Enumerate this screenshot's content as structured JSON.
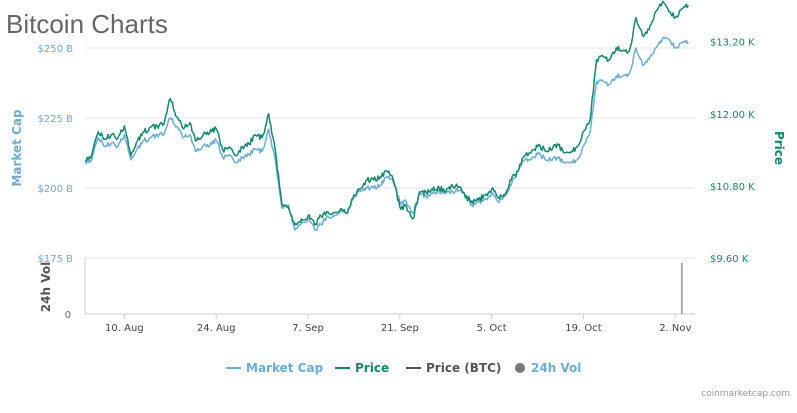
{
  "colors": {
    "market_cap": "#6aadd5",
    "price": "#108a6c",
    "price_btc": "#555555",
    "volume": "#777777",
    "grid": "#e6e6e6",
    "title": "#666666"
  },
  "chart_data": {
    "type": "line",
    "title": "Bitcoin Charts",
    "credit": "coinmarketcap.com",
    "x_ticks": [
      "10. Aug",
      "24. Aug",
      "7. Sep",
      "21. Sep",
      "5. Oct",
      "19. Oct",
      "2. Nov"
    ],
    "x_range": [
      "2020-08-04",
      "2020-11-05"
    ],
    "y_left": {
      "label": "Market Cap",
      "ticks": [
        "$175 B",
        "$200 B",
        "$225 B",
        "$250 B"
      ],
      "range": [
        175,
        260
      ]
    },
    "y_right": {
      "label": "Price",
      "ticks": [
        "$9.60 K",
        "$10.80 K",
        "$12.00 K",
        "$13.20 K"
      ],
      "range": [
        9600,
        13560
      ]
    },
    "y_volume": {
      "label": "24h Vol",
      "ticks": [
        "0"
      ]
    },
    "legend": [
      {
        "label": "Market Cap",
        "symbol": "line",
        "color_key": "market_cap"
      },
      {
        "label": "Price",
        "symbol": "line",
        "color_key": "price"
      },
      {
        "label": "Price (BTC)",
        "symbol": "line",
        "color_key": "price_btc"
      },
      {
        "label": "24h Vol",
        "symbol": "dot",
        "color_key": "volume"
      }
    ],
    "series": [
      {
        "name": "Market Cap",
        "axis": "left",
        "points": [
          [
            "2020-08-04",
            209
          ],
          [
            "2020-08-05",
            210
          ],
          [
            "2020-08-06",
            218
          ],
          [
            "2020-08-07",
            215
          ],
          [
            "2020-08-08",
            216
          ],
          [
            "2020-08-09",
            215
          ],
          [
            "2020-08-10",
            219
          ],
          [
            "2020-08-11",
            210
          ],
          [
            "2020-08-12",
            214
          ],
          [
            "2020-08-13",
            217
          ],
          [
            "2020-08-14",
            218
          ],
          [
            "2020-08-15",
            219
          ],
          [
            "2020-08-16",
            219
          ],
          [
            "2020-08-17",
            225
          ],
          [
            "2020-08-18",
            222
          ],
          [
            "2020-08-19",
            218
          ],
          [
            "2020-08-20",
            219
          ],
          [
            "2020-08-21",
            213
          ],
          [
            "2020-08-22",
            215
          ],
          [
            "2020-08-23",
            215
          ],
          [
            "2020-08-24",
            217
          ],
          [
            "2020-08-25",
            211
          ],
          [
            "2020-08-26",
            212
          ],
          [
            "2020-08-27",
            209
          ],
          [
            "2020-08-28",
            211
          ],
          [
            "2020-08-29",
            212
          ],
          [
            "2020-08-30",
            214
          ],
          [
            "2020-08-31",
            213
          ],
          [
            "2020-09-01",
            221
          ],
          [
            "2020-09-02",
            210
          ],
          [
            "2020-09-03",
            193
          ],
          [
            "2020-09-04",
            194
          ],
          [
            "2020-09-05",
            185
          ],
          [
            "2020-09-06",
            188
          ],
          [
            "2020-09-07",
            189
          ],
          [
            "2020-09-08",
            185
          ],
          [
            "2020-09-09",
            187
          ],
          [
            "2020-09-10",
            190
          ],
          [
            "2020-09-11",
            190
          ],
          [
            "2020-09-12",
            192
          ],
          [
            "2020-09-13",
            191
          ],
          [
            "2020-09-14",
            197
          ],
          [
            "2020-09-15",
            199
          ],
          [
            "2020-09-16",
            200
          ],
          [
            "2020-09-17",
            200
          ],
          [
            "2020-09-18",
            201
          ],
          [
            "2020-09-19",
            204
          ],
          [
            "2020-09-20",
            202
          ],
          [
            "2020-09-21",
            195
          ],
          [
            "2020-09-22",
            195
          ],
          [
            "2020-09-23",
            191
          ],
          [
            "2020-09-24",
            198
          ],
          [
            "2020-09-25",
            197
          ],
          [
            "2020-09-26",
            198
          ],
          [
            "2020-09-27",
            199
          ],
          [
            "2020-09-28",
            198
          ],
          [
            "2020-09-29",
            199
          ],
          [
            "2020-09-30",
            199
          ],
          [
            "2020-10-01",
            197
          ],
          [
            "2020-10-02",
            194
          ],
          [
            "2020-10-03",
            195
          ],
          [
            "2020-10-04",
            196
          ],
          [
            "2020-10-05",
            198
          ],
          [
            "2020-10-06",
            195
          ],
          [
            "2020-10-07",
            197
          ],
          [
            "2020-10-08",
            201
          ],
          [
            "2020-10-09",
            206
          ],
          [
            "2020-10-10",
            210
          ],
          [
            "2020-10-11",
            210
          ],
          [
            "2020-10-12",
            212
          ],
          [
            "2020-10-13",
            211
          ],
          [
            "2020-10-14",
            210
          ],
          [
            "2020-10-15",
            211
          ],
          [
            "2020-10-16",
            209
          ],
          [
            "2020-10-17",
            209
          ],
          [
            "2020-10-18",
            210
          ],
          [
            "2020-10-19",
            215
          ],
          [
            "2020-10-20",
            220
          ],
          [
            "2020-10-21",
            238
          ],
          [
            "2020-10-22",
            238
          ],
          [
            "2020-10-23",
            237
          ],
          [
            "2020-10-24",
            240
          ],
          [
            "2020-10-25",
            240
          ],
          [
            "2020-10-26",
            241
          ],
          [
            "2020-10-27",
            250
          ],
          [
            "2020-10-28",
            244
          ],
          [
            "2020-10-29",
            246
          ],
          [
            "2020-10-30",
            250
          ],
          [
            "2020-10-31",
            253
          ],
          [
            "2020-11-01",
            253
          ],
          [
            "2020-11-02",
            250
          ],
          [
            "2020-11-03",
            252
          ],
          [
            "2020-11-04",
            252
          ]
        ]
      },
      {
        "name": "Price",
        "axis": "right",
        "points": [
          [
            "2020-08-04",
            11220
          ],
          [
            "2020-08-05",
            11300
          ],
          [
            "2020-08-06",
            11700
          ],
          [
            "2020-08-07",
            11580
          ],
          [
            "2020-08-08",
            11650
          ],
          [
            "2020-08-09",
            11600
          ],
          [
            "2020-08-10",
            11800
          ],
          [
            "2020-08-11",
            11300
          ],
          [
            "2020-08-12",
            11550
          ],
          [
            "2020-08-13",
            11700
          ],
          [
            "2020-08-14",
            11780
          ],
          [
            "2020-08-15",
            11800
          ],
          [
            "2020-08-16",
            11820
          ],
          [
            "2020-08-17",
            12250
          ],
          [
            "2020-08-18",
            11950
          ],
          [
            "2020-08-19",
            11750
          ],
          [
            "2020-08-20",
            11850
          ],
          [
            "2020-08-21",
            11550
          ],
          [
            "2020-08-22",
            11650
          ],
          [
            "2020-08-23",
            11680
          ],
          [
            "2020-08-24",
            11750
          ],
          [
            "2020-08-25",
            11400
          ],
          [
            "2020-08-26",
            11450
          ],
          [
            "2020-08-27",
            11300
          ],
          [
            "2020-08-28",
            11450
          ],
          [
            "2020-08-29",
            11500
          ],
          [
            "2020-08-30",
            11650
          ],
          [
            "2020-08-31",
            11600
          ],
          [
            "2020-09-01",
            12000
          ],
          [
            "2020-09-02",
            11400
          ],
          [
            "2020-09-03",
            10500
          ],
          [
            "2020-09-04",
            10450
          ],
          [
            "2020-09-05",
            10150
          ],
          [
            "2020-09-06",
            10250
          ],
          [
            "2020-09-07",
            10300
          ],
          [
            "2020-09-08",
            10150
          ],
          [
            "2020-09-09",
            10300
          ],
          [
            "2020-09-10",
            10370
          ],
          [
            "2020-09-11",
            10350
          ],
          [
            "2020-09-12",
            10420
          ],
          [
            "2020-09-13",
            10350
          ],
          [
            "2020-09-14",
            10650
          ],
          [
            "2020-09-15",
            10750
          ],
          [
            "2020-09-16",
            10900
          ],
          [
            "2020-09-17",
            10900
          ],
          [
            "2020-09-18",
            10950
          ],
          [
            "2020-09-19",
            11050
          ],
          [
            "2020-09-20",
            10900
          ],
          [
            "2020-09-21",
            10450
          ],
          [
            "2020-09-22",
            10450
          ],
          [
            "2020-09-23",
            10250
          ],
          [
            "2020-09-24",
            10700
          ],
          [
            "2020-09-25",
            10700
          ],
          [
            "2020-09-26",
            10730
          ],
          [
            "2020-09-27",
            10770
          ],
          [
            "2020-09-28",
            10700
          ],
          [
            "2020-09-29",
            10820
          ],
          [
            "2020-09-30",
            10780
          ],
          [
            "2020-10-01",
            10600
          ],
          [
            "2020-10-02",
            10550
          ],
          [
            "2020-10-03",
            10570
          ],
          [
            "2020-10-04",
            10650
          ],
          [
            "2020-10-05",
            10750
          ],
          [
            "2020-10-06",
            10600
          ],
          [
            "2020-10-07",
            10650
          ],
          [
            "2020-10-08",
            10900
          ],
          [
            "2020-10-09",
            11050
          ],
          [
            "2020-10-10",
            11300
          ],
          [
            "2020-10-11",
            11350
          ],
          [
            "2020-10-12",
            11450
          ],
          [
            "2020-10-13",
            11420
          ],
          [
            "2020-10-14",
            11400
          ],
          [
            "2020-10-15",
            11500
          ],
          [
            "2020-10-16",
            11350
          ],
          [
            "2020-10-17",
            11350
          ],
          [
            "2020-10-18",
            11450
          ],
          [
            "2020-10-19",
            11700
          ],
          [
            "2020-10-20",
            11900
          ],
          [
            "2020-10-21",
            12900
          ],
          [
            "2020-10-22",
            12950
          ],
          [
            "2020-10-23",
            12900
          ],
          [
            "2020-10-24",
            13100
          ],
          [
            "2020-10-25",
            13050
          ],
          [
            "2020-10-26",
            13050
          ],
          [
            "2020-10-27",
            13600
          ],
          [
            "2020-10-28",
            13300
          ],
          [
            "2020-10-29",
            13400
          ],
          [
            "2020-10-30",
            13700
          ],
          [
            "2020-10-31",
            13850
          ],
          [
            "2020-11-01",
            13700
          ],
          [
            "2020-11-02",
            13600
          ],
          [
            "2020-11-03",
            13750
          ],
          [
            "2020-11-04",
            13800
          ]
        ]
      }
    ],
    "volume": [
      [
        "2020-11-03",
        1
      ]
    ]
  }
}
